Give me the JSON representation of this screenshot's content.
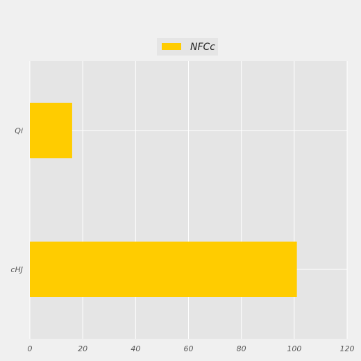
{
  "chart_data": {
    "type": "bar",
    "orientation": "horizontal",
    "categories": [
      "Qi",
      "cHJ"
    ],
    "series": [
      {
        "name": "NFCc",
        "values": [
          16,
          101
        ],
        "color": "#ffcc00"
      }
    ],
    "xlim": [
      0,
      120
    ],
    "xticks": [
      0,
      20,
      40,
      60,
      80,
      100,
      120
    ],
    "xtick_labels": [
      "0",
      "20",
      "40",
      "60",
      "80",
      "100",
      "120"
    ],
    "grid": true,
    "legend_position": "top-center",
    "background_color": "#f0f0f0",
    "plot_background_color": "#e5e5e5",
    "grid_color": "#ffffff"
  }
}
